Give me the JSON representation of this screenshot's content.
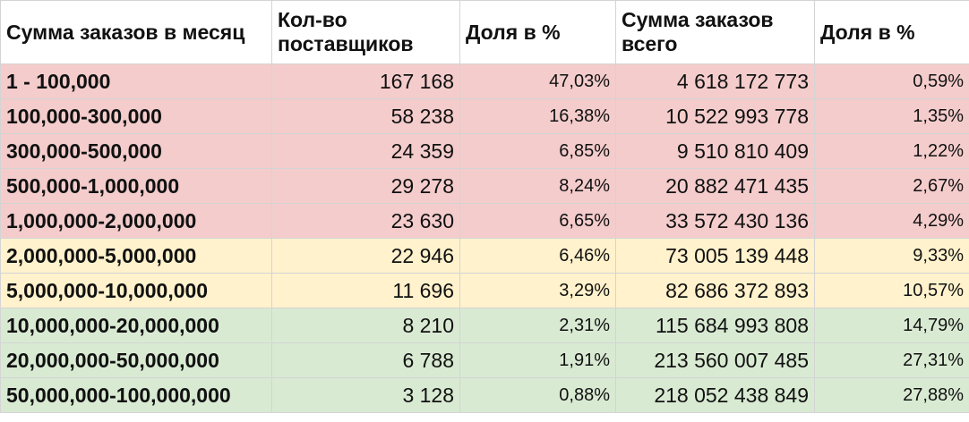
{
  "colors": {
    "band_low": "#f4cccc",
    "band_mid": "#fff2cc",
    "band_high": "#d9ead3"
  },
  "headers": [
    "Сумма заказов в месяц",
    "Кол-во поставщиков",
    "Доля в %",
    "Сумма заказов всего",
    "Доля в %"
  ],
  "rows": [
    {
      "range": "1 - 100,000",
      "suppliers": "167 168",
      "suppliers_share": "47,03%",
      "total": "4 618 172 773",
      "total_share": "0,59%",
      "band": "low"
    },
    {
      "range": "100,000-300,000",
      "suppliers": "58 238",
      "suppliers_share": "16,38%",
      "total": "10 522 993 778",
      "total_share": "1,35%",
      "band": "low"
    },
    {
      "range": "300,000-500,000",
      "suppliers": "24 359",
      "suppliers_share": "6,85%",
      "total": "9 510 810 409",
      "total_share": "1,22%",
      "band": "low"
    },
    {
      "range": "500,000-1,000,000",
      "suppliers": "29 278",
      "suppliers_share": "8,24%",
      "total": "20 882 471 435",
      "total_share": "2,67%",
      "band": "low"
    },
    {
      "range": "1,000,000-2,000,000",
      "suppliers": "23 630",
      "suppliers_share": "6,65%",
      "total": "33 572 430 136",
      "total_share": "4,29%",
      "band": "low"
    },
    {
      "range": "2,000,000-5,000,000",
      "suppliers": "22 946",
      "suppliers_share": "6,46%",
      "total": "73 005 139 448",
      "total_share": "9,33%",
      "band": "mid"
    },
    {
      "range": "5,000,000-10,000,000",
      "suppliers": "11 696",
      "suppliers_share": "3,29%",
      "total": "82 686 372 893",
      "total_share": "10,57%",
      "band": "mid"
    },
    {
      "range": "10,000,000-20,000,000",
      "suppliers": "8 210",
      "suppliers_share": "2,31%",
      "total": "115 684 993 808",
      "total_share": "14,79%",
      "band": "high"
    },
    {
      "range": "20,000,000-50,000,000",
      "suppliers": "6 788",
      "suppliers_share": "1,91%",
      "total": "213 560 007 485",
      "total_share": "27,31%",
      "band": "high"
    },
    {
      "range": "50,000,000-100,000,000",
      "suppliers": "3 128",
      "suppliers_share": "0,88%",
      "total": "218 052 438 849",
      "total_share": "27,88%",
      "band": "high"
    }
  ]
}
